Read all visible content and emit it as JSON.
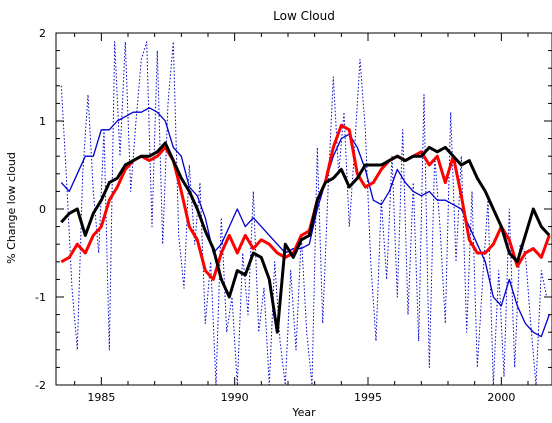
{
  "chart_data": {
    "type": "line",
    "title": "Low Cloud",
    "xlabel": "Year",
    "ylabel": "% Change low cloud",
    "xlim": [
      1983.3,
      2001.9
    ],
    "ylim": [
      -2,
      2
    ],
    "xticks": [
      1985,
      1990,
      1995,
      2000
    ],
    "yticks": [
      -2,
      -1,
      0,
      1,
      2
    ],
    "grid": false,
    "series": [
      {
        "color": "#0000cc",
        "style": "dotted",
        "width": 1,
        "x": [
          1983.5,
          1983.7,
          1983.9,
          1984.1,
          1984.3,
          1984.5,
          1984.7,
          1984.9,
          1985.1,
          1985.3,
          1985.5,
          1985.7,
          1985.9,
          1986.1,
          1986.3,
          1986.5,
          1986.7,
          1986.9,
          1987.1,
          1987.3,
          1987.5,
          1987.7,
          1987.9,
          1988.1,
          1988.3,
          1988.5,
          1988.7,
          1988.9,
          1989.1,
          1989.3,
          1989.5,
          1989.7,
          1989.9,
          1990.1,
          1990.3,
          1990.5,
          1990.7,
          1990.9,
          1991.1,
          1991.3,
          1991.5,
          1991.7,
          1991.9,
          1992.1,
          1992.3,
          1992.5,
          1992.7,
          1992.9,
          1993.1,
          1993.3,
          1993.5,
          1993.7,
          1993.9,
          1994.1,
          1994.3,
          1994.5,
          1994.7,
          1994.9,
          1995.1,
          1995.3,
          1995.5,
          1995.7,
          1995.9,
          1996.1,
          1996.3,
          1996.5,
          1996.7,
          1996.9,
          1997.1,
          1997.3,
          1997.5,
          1997.7,
          1997.9,
          1998.1,
          1998.3,
          1998.5,
          1998.7,
          1998.9,
          1999.1,
          1999.3,
          1999.5,
          1999.7,
          1999.9,
          2000.1,
          2000.3,
          2000.5,
          2000.7,
          2000.9,
          2001.1,
          2001.3,
          2001.5,
          2001.7
        ],
        "y": [
          1.4,
          0.3,
          -0.9,
          -1.6,
          0.4,
          1.3,
          0.2,
          -0.5,
          0.9,
          -1.6,
          1.9,
          0.6,
          1.9,
          0.2,
          1.0,
          1.7,
          1.9,
          -0.2,
          1.8,
          -0.4,
          1.2,
          1.9,
          -0.3,
          -0.9,
          0.5,
          -0.4,
          0.3,
          -1.3,
          -0.6,
          -2.0,
          -0.1,
          -1.4,
          -1.0,
          -2.0,
          -0.5,
          -1.2,
          0.2,
          -1.4,
          -0.9,
          -2.0,
          -0.6,
          -1.5,
          -2.0,
          -0.7,
          -1.6,
          -0.3,
          -1.4,
          -2.0,
          0.7,
          -1.3,
          0.2,
          1.5,
          0.4,
          1.1,
          -0.2,
          0.7,
          1.7,
          0.9,
          -0.6,
          -1.5,
          0.1,
          -0.8,
          0.6,
          -1.0,
          0.9,
          -1.2,
          0.3,
          -1.5,
          1.3,
          -1.8,
          0.6,
          -0.2,
          -1.3,
          1.1,
          -0.6,
          0.6,
          -1.4,
          0.2,
          -1.8,
          -0.8,
          0.1,
          -2.0,
          -0.7,
          -1.9,
          0.0,
          -1.8,
          -0.4,
          -0.5,
          -1.3,
          -2.0,
          -0.7,
          -1.0
        ]
      },
      {
        "color": "#0000cc",
        "style": "solid",
        "width": 1.3,
        "x": [
          1983.5,
          1983.8,
          1984.1,
          1984.4,
          1984.7,
          1985.0,
          1985.3,
          1985.6,
          1985.9,
          1986.2,
          1986.5,
          1986.8,
          1987.1,
          1987.4,
          1987.7,
          1988.0,
          1988.3,
          1988.6,
          1988.9,
          1989.2,
          1989.5,
          1989.8,
          1990.1,
          1990.4,
          1990.7,
          1991.0,
          1991.3,
          1991.6,
          1991.9,
          1992.2,
          1992.5,
          1992.8,
          1993.1,
          1993.4,
          1993.7,
          1994.0,
          1994.3,
          1994.6,
          1994.9,
          1995.2,
          1995.5,
          1995.8,
          1996.1,
          1996.4,
          1996.7,
          1997.0,
          1997.3,
          1997.6,
          1997.9,
          1998.2,
          1998.5,
          1998.8,
          1999.1,
          1999.4,
          1999.7,
          2000.0,
          2000.3,
          2000.6,
          2000.9,
          2001.2,
          2001.5,
          2001.8
        ],
        "y": [
          0.3,
          0.2,
          0.4,
          0.6,
          0.6,
          0.9,
          0.9,
          1.0,
          1.05,
          1.1,
          1.1,
          1.15,
          1.1,
          1.0,
          0.7,
          0.6,
          0.25,
          0.15,
          -0.1,
          -0.5,
          -0.4,
          -0.2,
          0.0,
          -0.2,
          -0.1,
          -0.2,
          -0.3,
          -0.4,
          -0.5,
          -0.45,
          -0.45,
          -0.4,
          0.0,
          0.3,
          0.6,
          0.8,
          0.85,
          0.7,
          0.45,
          0.1,
          0.05,
          0.2,
          0.45,
          0.3,
          0.2,
          0.15,
          0.2,
          0.1,
          0.1,
          0.05,
          0.0,
          -0.2,
          -0.4,
          -0.6,
          -1.0,
          -1.1,
          -0.8,
          -1.1,
          -1.3,
          -1.4,
          -1.45,
          -1.2
        ]
      },
      {
        "color": "#ff0000",
        "style": "solid",
        "width": 3,
        "x": [
          1983.5,
          1983.8,
          1984.1,
          1984.4,
          1984.7,
          1985.0,
          1985.3,
          1985.6,
          1985.9,
          1986.2,
          1986.5,
          1986.8,
          1987.1,
          1987.4,
          1987.7,
          1988.0,
          1988.3,
          1988.6,
          1988.9,
          1989.2,
          1989.5,
          1989.8,
          1990.1,
          1990.4,
          1990.7,
          1991.0,
          1991.3,
          1991.6,
          1991.9,
          1992.2,
          1992.5,
          1992.8,
          1993.1,
          1993.4,
          1993.7,
          1994.0,
          1994.3,
          1994.6,
          1994.9,
          1995.2,
          1995.5,
          1995.8,
          1996.1,
          1996.4,
          1996.7,
          1997.0,
          1997.3,
          1997.6,
          1997.9,
          1998.2,
          1998.5,
          1998.8,
          1999.1,
          1999.4,
          1999.7,
          2000.0,
          2000.3,
          2000.6,
          2000.9,
          2001.2,
          2001.5,
          2001.8
        ],
        "y": [
          -0.6,
          -0.55,
          -0.4,
          -0.5,
          -0.3,
          -0.2,
          0.1,
          0.25,
          0.45,
          0.55,
          0.6,
          0.55,
          0.6,
          0.7,
          0.55,
          0.2,
          -0.2,
          -0.35,
          -0.7,
          -0.8,
          -0.5,
          -0.3,
          -0.5,
          -0.3,
          -0.45,
          -0.35,
          -0.4,
          -0.5,
          -0.55,
          -0.5,
          -0.3,
          -0.25,
          0.1,
          0.3,
          0.7,
          0.95,
          0.9,
          0.4,
          0.25,
          0.3,
          0.45,
          0.55,
          0.6,
          0.55,
          0.6,
          0.65,
          0.5,
          0.6,
          0.3,
          0.6,
          0.15,
          -0.35,
          -0.5,
          -0.5,
          -0.4,
          -0.2,
          -0.35,
          -0.65,
          -0.5,
          -0.45,
          -0.55,
          -0.3
        ]
      },
      {
        "color": "#000000",
        "style": "solid",
        "width": 3,
        "x": [
          1983.5,
          1983.8,
          1984.1,
          1984.4,
          1984.7,
          1985.0,
          1985.3,
          1985.6,
          1985.9,
          1986.2,
          1986.5,
          1986.8,
          1987.1,
          1987.4,
          1987.7,
          1988.0,
          1988.3,
          1988.6,
          1988.9,
          1989.2,
          1989.5,
          1989.8,
          1990.1,
          1990.4,
          1990.7,
          1991.0,
          1991.3,
          1991.6,
          1991.9,
          1992.2,
          1992.5,
          1992.8,
          1993.1,
          1993.4,
          1993.7,
          1994.0,
          1994.3,
          1994.6,
          1994.9,
          1995.2,
          1995.5,
          1995.8,
          1996.1,
          1996.4,
          1996.7,
          1997.0,
          1997.3,
          1997.6,
          1997.9,
          1998.2,
          1998.5,
          1998.8,
          1999.1,
          1999.4,
          1999.7,
          2000.0,
          2000.3,
          2000.6,
          2000.9,
          2001.2,
          2001.5,
          2001.8
        ],
        "y": [
          -0.15,
          -0.05,
          0.0,
          -0.3,
          -0.05,
          0.1,
          0.3,
          0.35,
          0.5,
          0.55,
          0.6,
          0.6,
          0.65,
          0.75,
          0.55,
          0.35,
          0.2,
          0.0,
          -0.25,
          -0.45,
          -0.8,
          -1.0,
          -0.7,
          -0.75,
          -0.5,
          -0.55,
          -0.8,
          -1.4,
          -0.4,
          -0.55,
          -0.35,
          -0.3,
          0.1,
          0.3,
          0.35,
          0.45,
          0.25,
          0.35,
          0.5,
          0.5,
          0.5,
          0.55,
          0.6,
          0.55,
          0.6,
          0.6,
          0.7,
          0.65,
          0.7,
          0.6,
          0.5,
          0.55,
          0.35,
          0.2,
          0.0,
          -0.2,
          -0.5,
          -0.6,
          -0.3,
          0.0,
          -0.2,
          -0.3
        ]
      }
    ]
  }
}
